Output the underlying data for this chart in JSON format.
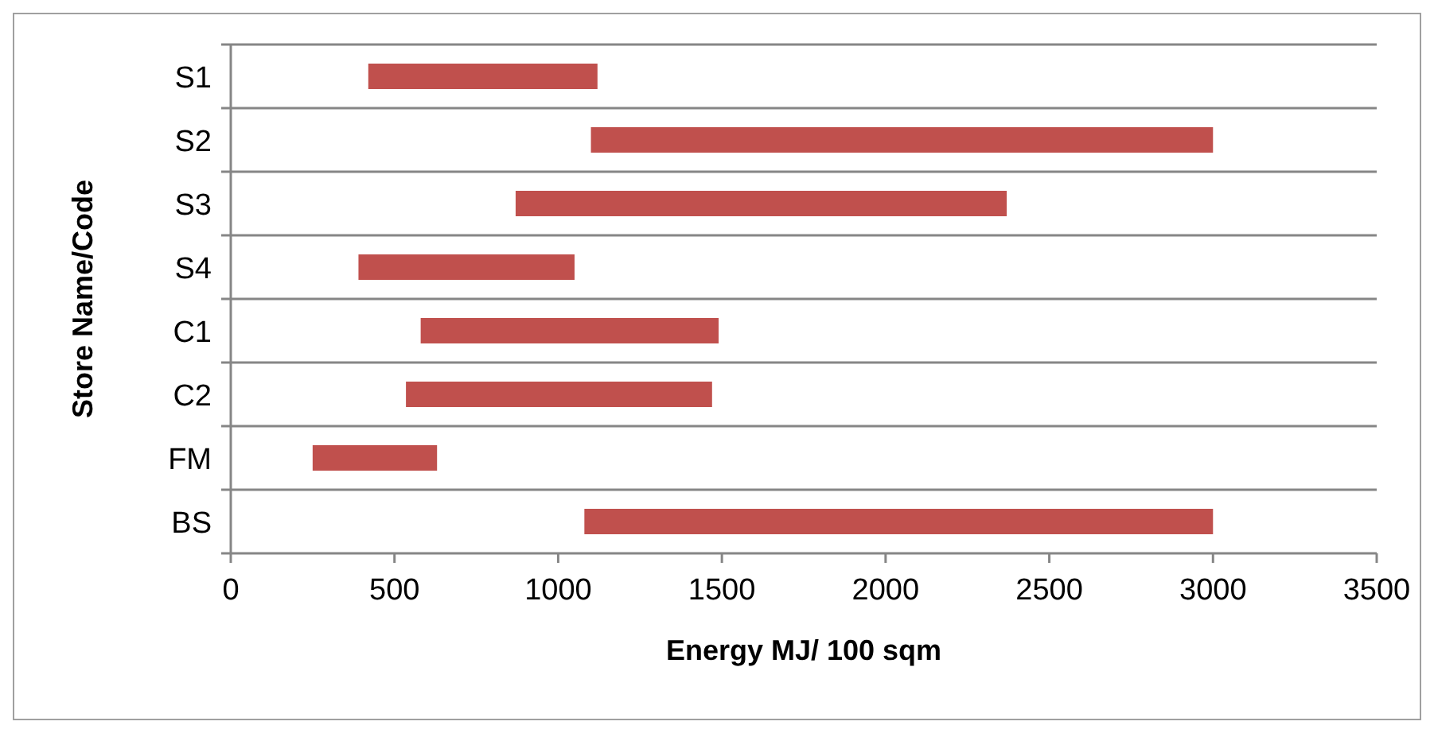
{
  "chart_data": {
    "type": "bar",
    "orientation": "horizontal",
    "xlabel": "Energy MJ/ 100 sqm",
    "ylabel": "Store Name/Code",
    "categories": [
      "S1",
      "S2",
      "S3",
      "S4",
      "C1",
      "C2",
      "FM",
      "BS"
    ],
    "base": [
      420,
      1100,
      870,
      390,
      580,
      535,
      250,
      1080
    ],
    "values": [
      700,
      1900,
      1500,
      660,
      910,
      935,
      380,
      1920
    ],
    "color": "#c0504d",
    "xlim": [
      0,
      3500
    ],
    "xticks": [
      0,
      500,
      1000,
      1500,
      2000,
      2500,
      3000,
      3500
    ],
    "grid": "y"
  }
}
